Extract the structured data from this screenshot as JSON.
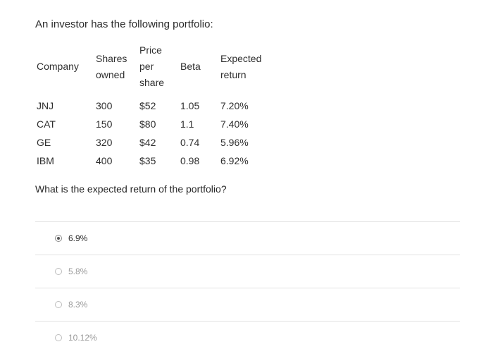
{
  "intro": "An investor has the following portfolio:",
  "table": {
    "headers": {
      "company": "Company",
      "shares_l1": "Shares",
      "shares_l2": "owned",
      "price_l1": "Price",
      "price_l2": "per",
      "price_l3": "share",
      "beta": "Beta",
      "exp_l1": "Expected",
      "exp_l2": "return"
    },
    "rows": [
      {
        "company": "JNJ",
        "shares": "300",
        "price": "$52",
        "beta": "1.05",
        "expected": "7.20%"
      },
      {
        "company": "CAT",
        "shares": "150",
        "price": "$80",
        "beta": "1.1",
        "expected": "7.40%"
      },
      {
        "company": "GE",
        "shares": "320",
        "price": "$42",
        "beta": "0.74",
        "expected": "5.96%"
      },
      {
        "company": "IBM",
        "shares": "400",
        "price": "$35",
        "beta": "0.98",
        "expected": "6.92%"
      }
    ]
  },
  "question": "What is the expected return of the portfolio?",
  "options": [
    {
      "label": "6.9%",
      "selected": true
    },
    {
      "label": "5.8%",
      "selected": false
    },
    {
      "label": "8.3%",
      "selected": false
    },
    {
      "label": "10.12%",
      "selected": false
    }
  ]
}
